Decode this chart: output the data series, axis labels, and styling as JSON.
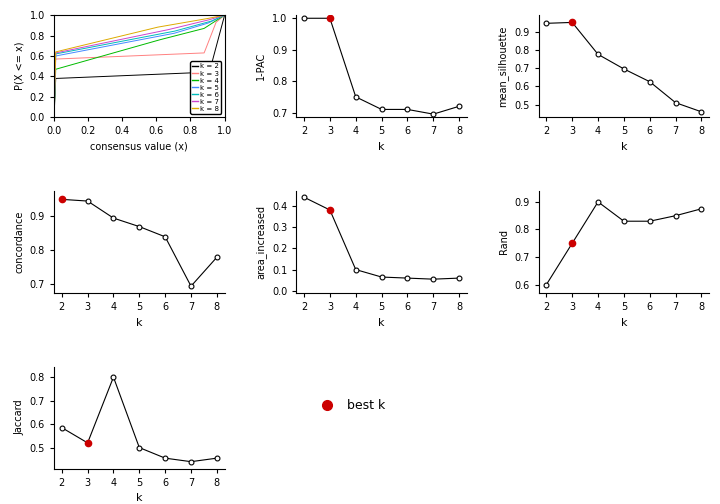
{
  "k_values": [
    2,
    3,
    4,
    5,
    6,
    7,
    8
  ],
  "pac_1minus": [
    1.0,
    1.0,
    0.75,
    0.71,
    0.71,
    0.695,
    0.72
  ],
  "pac_best_k": 3,
  "mean_silhouette": [
    0.945,
    0.95,
    0.775,
    0.695,
    0.625,
    0.51,
    0.46
  ],
  "sil_best_k": 3,
  "concordance": [
    0.95,
    0.945,
    0.895,
    0.87,
    0.84,
    0.695,
    0.78
  ],
  "conc_best_k": 2,
  "area_increased": [
    0.44,
    0.38,
    0.1,
    0.065,
    0.06,
    0.055,
    0.06
  ],
  "area_best_k": 3,
  "rand": [
    0.6,
    0.75,
    0.9,
    0.83,
    0.83,
    0.85,
    0.875
  ],
  "rand_best_k": 3,
  "jaccard": [
    0.585,
    0.52,
    0.8,
    0.5,
    0.455,
    0.44,
    0.455
  ],
  "jacc_best_k": 3,
  "ecdf_colors": [
    "black",
    "#FF8080",
    "#00BB00",
    "#4488FF",
    "#00BBBB",
    "#CC44CC",
    "#DDAA00"
  ],
  "ecdf_labels": [
    "k = 2",
    "k = 3",
    "k = 4",
    "k = 5",
    "k = 6",
    "k = 7",
    "k = 8"
  ],
  "best_k_color": "#CC0000",
  "bg_color": "white"
}
